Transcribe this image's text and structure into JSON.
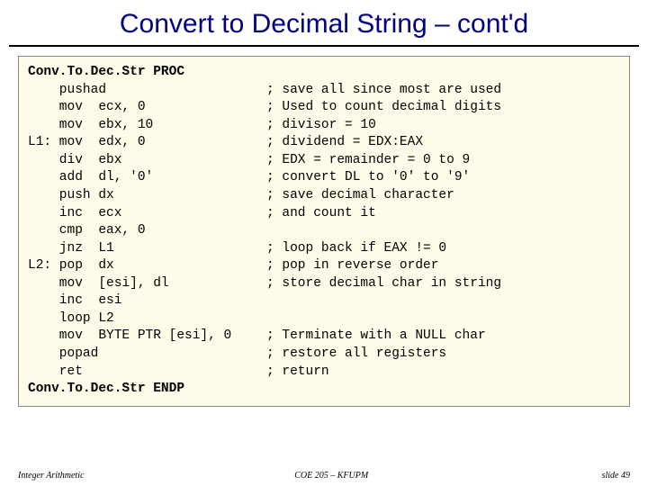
{
  "title": "Convert to Decimal String – cont'd",
  "code_lines": [
    {
      "left_bold": "Conv.To.Dec.Str PROC",
      "left": "",
      "right": ""
    },
    {
      "left": "    pushad",
      "right": "; save all since most are used"
    },
    {
      "left": "    mov  ecx, 0",
      "right": "; Used to count decimal digits"
    },
    {
      "left": "    mov  ebx, 10",
      "right": "; divisor = 10"
    },
    {
      "left": "L1: mov  edx, 0",
      "right": "; dividend = EDX:EAX"
    },
    {
      "left": "    div  ebx",
      "right": "; EDX = remainder = 0 to 9"
    },
    {
      "left": "    add  dl, '0'",
      "right": "; convert DL to '0' to '9'"
    },
    {
      "left": "    push dx",
      "right": "; save decimal character"
    },
    {
      "left": "    inc  ecx",
      "right": "; and count it"
    },
    {
      "left": "    cmp  eax, 0",
      "right": ""
    },
    {
      "left": "    jnz  L1",
      "right": "; loop back if EAX != 0"
    },
    {
      "left": "L2: pop  dx",
      "right": "; pop in reverse order"
    },
    {
      "left": "    mov  [esi], dl",
      "right": "; store decimal char in string"
    },
    {
      "left": "    inc  esi",
      "right": ""
    },
    {
      "left": "    loop L2",
      "right": ""
    },
    {
      "left": "    mov  BYTE PTR [esi], 0",
      "right": "; Terminate with a NULL char"
    },
    {
      "left": "    popad",
      "right": "; restore all registers"
    },
    {
      "left": "    ret",
      "right": "; return"
    },
    {
      "left_bold": "Conv.To.Dec.Str ENDP",
      "left": "",
      "right": ""
    }
  ],
  "footer": {
    "left": "Integer Arithmetic",
    "center": "COE 205 – KFUPM",
    "right": "slide 49"
  },
  "colors": {
    "title": "#000080",
    "code_bg": "#fdfce8",
    "border": "#888888",
    "text": "#000000"
  }
}
